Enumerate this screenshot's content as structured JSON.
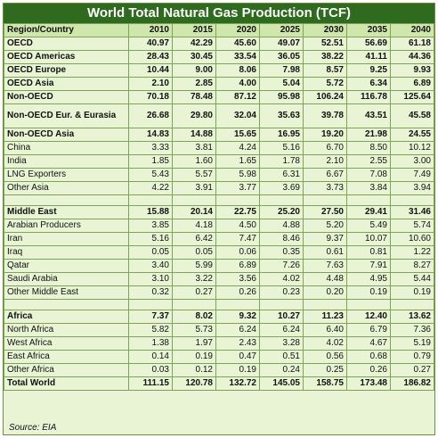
{
  "title": "World Total Natural Gas Production (TCF)",
  "header": [
    "Region/Country",
    "2010",
    "2015",
    "2020",
    "2025",
    "2030",
    "2035",
    "2040"
  ],
  "rows": [
    {
      "label": "OECD",
      "values": [
        "40.97",
        "42.29",
        "45.60",
        "49.07",
        "52.51",
        "56.69",
        "61.18"
      ],
      "bold": true
    },
    {
      "label": "OECD Americas",
      "values": [
        "28.43",
        "30.45",
        "33.54",
        "36.05",
        "38.22",
        "41.11",
        "44.36"
      ],
      "bold": true
    },
    {
      "label": "OECD Europe",
      "values": [
        "10.44",
        "9.00",
        "8.06",
        "7.98",
        "8.57",
        "9.25",
        "9.93"
      ],
      "bold": true
    },
    {
      "label": "OECD Asia",
      "values": [
        "2.10",
        "2.85",
        "4.00",
        "5.04",
        "5.72",
        "6.34",
        "6.89"
      ],
      "bold": true
    },
    {
      "label": "Non-OECD",
      "values": [
        "70.18",
        "78.48",
        "87.12",
        "95.98",
        "106.24",
        "116.78",
        "125.64"
      ],
      "bold": true
    },
    {
      "label": "Non-OECD Eur. & Eurasia",
      "values": [
        "26.68",
        "29.80",
        "32.04",
        "35.63",
        "39.78",
        "43.51",
        "45.58"
      ],
      "bold": true,
      "tall": true
    },
    {
      "label": "Non-OECD Asia",
      "values": [
        "14.83",
        "14.88",
        "15.65",
        "16.95",
        "19.20",
        "21.98",
        "24.55"
      ],
      "bold": true
    },
    {
      "label": "China",
      "values": [
        "3.33",
        "3.81",
        "4.24",
        "5.16",
        "6.70",
        "8.50",
        "10.12"
      ]
    },
    {
      "label": "India",
      "values": [
        "1.85",
        "1.60",
        "1.65",
        "1.78",
        "2.10",
        "2.55",
        "3.00"
      ]
    },
    {
      "label": "LNG Exporters",
      "values": [
        "5.43",
        "5.57",
        "5.98",
        "6.31",
        "6.67",
        "7.08",
        "7.49"
      ]
    },
    {
      "label": "Other Asia",
      "values": [
        "4.22",
        "3.91",
        "3.77",
        "3.69",
        "3.73",
        "3.84",
        "3.94"
      ]
    },
    {
      "spacer": true
    },
    {
      "label": "Middle East",
      "values": [
        "15.88",
        "20.14",
        "22.75",
        "25.20",
        "27.50",
        "29.41",
        "31.46"
      ],
      "bold": true
    },
    {
      "label": "Arabian Producers",
      "values": [
        "3.85",
        "4.18",
        "4.50",
        "4.88",
        "5.20",
        "5.49",
        "5.74"
      ]
    },
    {
      "label": "Iran",
      "values": [
        "5.16",
        "6.42",
        "7.47",
        "8.46",
        "9.37",
        "10.07",
        "10.60"
      ]
    },
    {
      "label": "Iraq",
      "values": [
        "0.05",
        "0.05",
        "0.06",
        "0.35",
        "0.61",
        "0.81",
        "1.22"
      ]
    },
    {
      "label": "Qatar",
      "values": [
        "3.40",
        "5.99",
        "6.89",
        "7.26",
        "7.63",
        "7.91",
        "8.27"
      ]
    },
    {
      "label": "Saudi Arabia",
      "values": [
        "3.10",
        "3.22",
        "3.56",
        "4.02",
        "4.48",
        "4.95",
        "5.44"
      ]
    },
    {
      "label": "Other Middle East",
      "values": [
        "0.32",
        "0.27",
        "0.26",
        "0.23",
        "0.20",
        "0.19",
        "0.19"
      ]
    },
    {
      "spacer": true
    },
    {
      "label": "Africa",
      "values": [
        "7.37",
        "8.02",
        "9.32",
        "10.27",
        "11.23",
        "12.40",
        "13.62"
      ],
      "bold": true
    },
    {
      "label": "North Africa",
      "values": [
        "5.82",
        "5.73",
        "6.24",
        "6.24",
        "6.40",
        "6.79",
        "7.36"
      ]
    },
    {
      "label": "West Africa",
      "values": [
        "1.38",
        "1.97",
        "2.43",
        "3.28",
        "4.02",
        "4.67",
        "5.19"
      ]
    },
    {
      "label": "East Africa",
      "values": [
        "0.14",
        "0.19",
        "0.47",
        "0.51",
        "0.56",
        "0.68",
        "0.79"
      ]
    },
    {
      "label": "Other Africa",
      "values": [
        "0.03",
        "0.12",
        "0.19",
        "0.24",
        "0.25",
        "0.26",
        "0.27"
      ]
    },
    {
      "label": "Total World",
      "values": [
        "111.15",
        "120.78",
        "132.72",
        "145.05",
        "158.75",
        "173.48",
        "186.82"
      ],
      "bold": true
    }
  ],
  "source": "Source: EIA"
}
